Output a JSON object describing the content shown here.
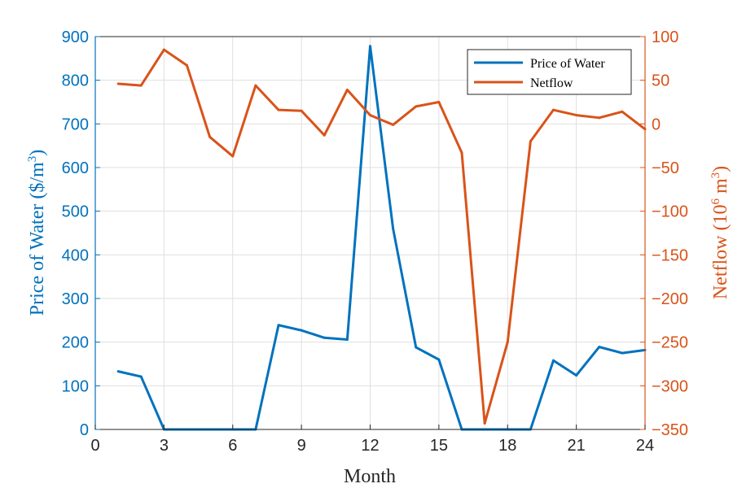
{
  "chart_data": {
    "type": "line",
    "title": "",
    "xlabel": "Month",
    "ylabel_left": {
      "prefix": "Price of Water ($/m",
      "sup": "3",
      "suffix": ")"
    },
    "ylabel_right": {
      "prefix": "Netflow (10",
      "sup": "6",
      "mid": " m",
      "sup2": "3",
      "suffix": ")"
    },
    "xlim": [
      0,
      24
    ],
    "ylim_left": [
      0,
      900
    ],
    "ylim_right": [
      -350,
      100
    ],
    "x_ticks": [
      0,
      3,
      6,
      9,
      12,
      15,
      18,
      21,
      24
    ],
    "y_left_ticks": [
      0,
      100,
      200,
      300,
      400,
      500,
      600,
      700,
      800,
      900
    ],
    "y_right_ticks": [
      "100",
      "50",
      "0",
      "-50",
      "-100",
      "-150",
      "-200",
      "-250",
      "-300",
      "-350"
    ],
    "y_right_values": [
      100,
      50,
      0,
      -50,
      -100,
      -150,
      -200,
      -250,
      -300,
      -350
    ],
    "grid": true,
    "legend_position": "top-right",
    "x": [
      1,
      2,
      3,
      4,
      5,
      6,
      7,
      8,
      9,
      10,
      11,
      12,
      13,
      14,
      15,
      16,
      17,
      18,
      19,
      20,
      21,
      22,
      23,
      24
    ],
    "series": [
      {
        "name": "Price of Water",
        "axis": "left",
        "color": "#0072BD",
        "values": [
          133,
          121,
          0,
          0,
          0,
          0,
          0,
          239,
          227,
          210,
          206,
          878,
          460,
          188,
          160,
          0,
          0,
          0,
          0,
          158,
          124,
          189,
          175,
          182
        ]
      },
      {
        "name": "Netflow",
        "axis": "right",
        "color": "#D95319",
        "values": [
          46,
          44,
          85,
          67,
          -15,
          -37,
          44,
          16,
          15,
          -13,
          39,
          10,
          -1,
          20,
          25,
          -33,
          -343,
          -250,
          -20,
          16,
          10,
          7,
          14,
          -6
        ]
      }
    ]
  }
}
